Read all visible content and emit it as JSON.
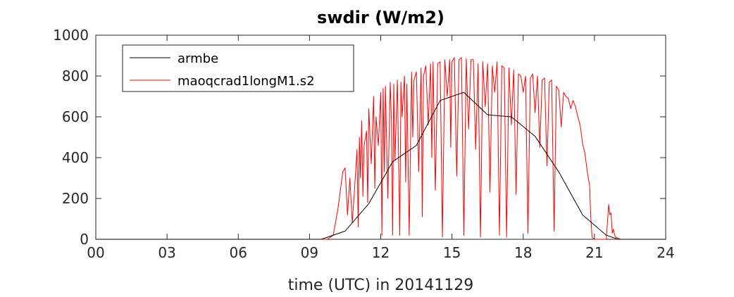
{
  "chart_data": {
    "type": "line",
    "title": "swdir  (W/m2)",
    "xlabel": "time (UTC) in 20141129",
    "ylabel": "",
    "xlim": [
      0,
      24
    ],
    "ylim": [
      0,
      1000
    ],
    "xticks": [
      0,
      3,
      6,
      9,
      12,
      15,
      18,
      21,
      24
    ],
    "xtick_labels": [
      "00",
      "03",
      "06",
      "09",
      "12",
      "15",
      "18",
      "21",
      "24"
    ],
    "yticks": [
      0,
      200,
      400,
      600,
      800,
      1000
    ],
    "ytick_labels": [
      "0",
      "200",
      "400",
      "600",
      "800",
      "1000"
    ],
    "grid": false,
    "legend_position": "top-left",
    "series": [
      {
        "name": "armbe",
        "color": "#000000",
        "x": [
          0,
          9.5,
          10.5,
          11.5,
          12.5,
          13.5,
          14.5,
          15.5,
          16.5,
          17.5,
          18.5,
          19.5,
          20.5,
          21.5,
          22.0,
          24
        ],
        "y": [
          0,
          0,
          40,
          175,
          380,
          460,
          680,
          720,
          610,
          600,
          505,
          330,
          120,
          20,
          0,
          0
        ]
      },
      {
        "name": "maoqcrad1longM1.s2",
        "color": "#ff0000",
        "x": [
          0,
          9.75,
          10.0,
          10.2,
          10.4,
          10.5,
          10.6,
          10.7,
          10.8,
          10.9,
          11.0,
          11.05,
          11.1,
          11.15,
          11.2,
          11.25,
          11.3,
          11.4,
          11.45,
          11.5,
          11.6,
          11.7,
          11.75,
          11.8,
          11.9,
          12.0,
          12.05,
          12.1,
          12.15,
          12.2,
          12.3,
          12.4,
          12.45,
          12.5,
          12.55,
          12.6,
          12.7,
          12.8,
          12.85,
          12.9,
          13.0,
          13.05,
          13.1,
          13.2,
          13.3,
          13.35,
          13.4,
          13.5,
          13.6,
          13.7,
          13.75,
          13.8,
          13.9,
          14.0,
          14.1,
          14.15,
          14.2,
          14.3,
          14.4,
          14.5,
          14.6,
          14.7,
          14.8,
          14.9,
          14.95,
          15.0,
          15.1,
          15.2,
          15.3,
          15.4,
          15.5,
          15.6,
          15.7,
          15.8,
          15.9,
          16.0,
          16.1,
          16.2,
          16.3,
          16.4,
          16.5,
          16.6,
          16.7,
          16.8,
          16.9,
          17.0,
          17.1,
          17.2,
          17.3,
          17.4,
          17.5,
          17.6,
          17.7,
          17.8,
          17.9,
          18.0,
          18.1,
          18.2,
          18.3,
          18.4,
          18.5,
          18.6,
          18.7,
          18.8,
          18.9,
          19.0,
          19.1,
          19.2,
          19.3,
          19.4,
          19.5,
          19.6,
          19.7,
          19.8,
          19.9,
          20.0,
          20.1,
          20.2,
          20.3,
          20.4,
          20.5,
          20.6,
          20.7,
          20.8,
          20.85,
          20.9,
          21.0,
          21.5,
          21.6,
          21.65,
          21.7,
          21.75,
          21.8,
          21.85,
          21.9,
          22.1,
          24
        ],
        "y": [
          0,
          0,
          20,
          150,
          330,
          350,
          120,
          300,
          80,
          250,
          440,
          60,
          500,
          300,
          580,
          210,
          460,
          530,
          180,
          640,
          370,
          700,
          250,
          600,
          460,
          720,
          20,
          740,
          330,
          750,
          200,
          770,
          580,
          20,
          760,
          390,
          780,
          20,
          770,
          600,
          800,
          280,
          760,
          20,
          820,
          500,
          780,
          820,
          330,
          840,
          110,
          800,
          850,
          560,
          860,
          400,
          870,
          240,
          860,
          870,
          10,
          880,
          700,
          880,
          450,
          870,
          890,
          310,
          880,
          890,
          20,
          885,
          540,
          880,
          880,
          440,
          860,
          10,
          870,
          650,
          860,
          230,
          850,
          720,
          870,
          20,
          850,
          840,
          10,
          840,
          560,
          830,
          220,
          810,
          800,
          720,
          800,
          30,
          790,
          810,
          620,
          800,
          450,
          780,
          790,
          360,
          770,
          780,
          40,
          750,
          730,
          550,
          720,
          700,
          690,
          640,
          680,
          650,
          600,
          560,
          470,
          420,
          330,
          260,
          100,
          10,
          0,
          0,
          170,
          120,
          130,
          30,
          50,
          20,
          10,
          0,
          0
        ]
      }
    ]
  }
}
